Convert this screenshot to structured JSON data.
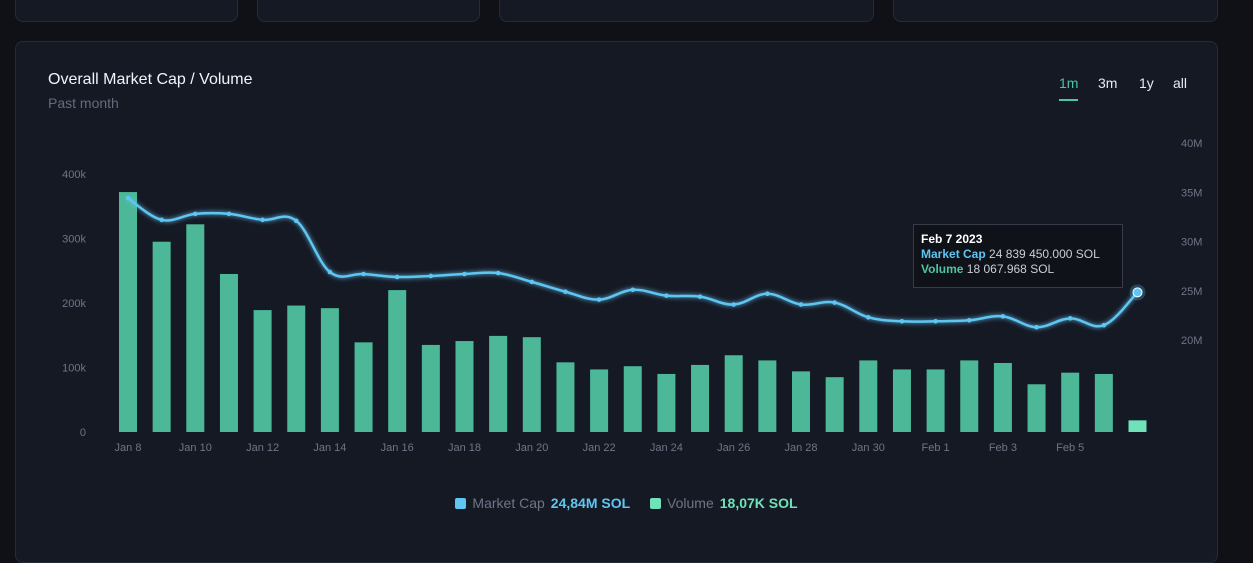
{
  "header": {
    "title": "Overall Market Cap / Volume",
    "subtitle": "Past month"
  },
  "tabs": [
    {
      "label": "1m",
      "active": true
    },
    {
      "label": "3m",
      "active": false
    },
    {
      "label": "1y",
      "active": false
    },
    {
      "label": "all",
      "active": false
    }
  ],
  "colors": {
    "volume_bar": "#4cb898",
    "market_cap_line": "#5fc6f3",
    "volume_legend": "#6fe2b9",
    "axis_text": "#6e7587"
  },
  "tooltip": {
    "date": "Feb 7 2023",
    "market_cap_label": "Market Cap",
    "market_cap_value": "24 839 450.000 SOL",
    "volume_label": "Volume",
    "volume_value": "18 067.968 SOL"
  },
  "legend": {
    "market_cap_label": "Market Cap",
    "market_cap_value": "24,84M SOL",
    "volume_label": "Volume",
    "volume_value": "18,07K SOL"
  },
  "chart_data": {
    "type": "bar",
    "x_tick_labels": [
      "Jan 8",
      "Jan 10",
      "Jan 12",
      "Jan 14",
      "Jan 16",
      "Jan 18",
      "Jan 20",
      "Jan 22",
      "Jan 24",
      "Jan 26",
      "Jan 28",
      "Jan 30",
      "Feb 1",
      "Feb 3",
      "Feb 5"
    ],
    "left_axis": {
      "ticks": [
        "0",
        "100k",
        "200k",
        "300k",
        "400k"
      ],
      "range": [
        0,
        400000
      ]
    },
    "right_axis": {
      "ticks": [
        "20M",
        "25M",
        "30M",
        "35M",
        "40M"
      ],
      "range": [
        20000000,
        40000000
      ]
    },
    "categories": [
      "Jan 8",
      "Jan 9",
      "Jan 10",
      "Jan 11",
      "Jan 12",
      "Jan 13",
      "Jan 14",
      "Jan 15",
      "Jan 16",
      "Jan 17",
      "Jan 18",
      "Jan 19",
      "Jan 20",
      "Jan 21",
      "Jan 22",
      "Jan 23",
      "Jan 24",
      "Jan 25",
      "Jan 26",
      "Jan 27",
      "Jan 28",
      "Jan 29",
      "Jan 30",
      "Jan 31",
      "Feb 1",
      "Feb 2",
      "Feb 3",
      "Feb 4",
      "Feb 5",
      "Feb 6",
      "Feb 7"
    ],
    "series": [
      {
        "name": "Volume",
        "axis": "left",
        "kind": "bar",
        "values": [
          372000,
          295000,
          322000,
          245000,
          189000,
          196000,
          192000,
          139000,
          220000,
          135000,
          141000,
          149000,
          147000,
          108000,
          97000,
          102000,
          90000,
          104000,
          119000,
          111000,
          94000,
          85000,
          111000,
          97000,
          97000,
          111000,
          107000,
          74000,
          92000,
          90000,
          18068
        ]
      },
      {
        "name": "Market Cap",
        "axis": "right",
        "kind": "line",
        "values": [
          34400000,
          32200000,
          32800000,
          32800000,
          32200000,
          32100000,
          26900000,
          26700000,
          26400000,
          26500000,
          26700000,
          26800000,
          25900000,
          24900000,
          24100000,
          25100000,
          24500000,
          24400000,
          23600000,
          24700000,
          23600000,
          23800000,
          22300000,
          21900000,
          21900000,
          22000000,
          22400000,
          21300000,
          22200000,
          21500000,
          24839450
        ]
      }
    ]
  }
}
